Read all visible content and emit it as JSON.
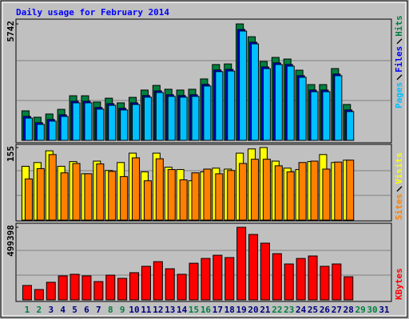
{
  "title": "Daily usage for February 2014",
  "chart_data": [
    {
      "type": "bar",
      "ylim": [
        0,
        5742
      ],
      "yticks": [
        5742
      ],
      "series": [
        {
          "name": "Hits",
          "color": "#008040",
          "values": [
            1455,
            1140,
            1300,
            1530,
            2200,
            2200,
            1890,
            2080,
            1850,
            2120,
            2480,
            2710,
            2520,
            2480,
            2520,
            3030,
            3740,
            3770,
            5742,
            5110,
            3890,
            4090,
            4010,
            3460,
            2750,
            2750,
            3540,
            1770,
            null,
            null,
            null
          ]
        },
        {
          "name": "Files",
          "color": "#0000ff",
          "values": [
            1180,
            870,
            1030,
            1260,
            1930,
            1930,
            1620,
            1810,
            1580,
            1850,
            2210,
            2440,
            2250,
            2210,
            2250,
            2760,
            3470,
            3500,
            5470,
            4840,
            3620,
            3820,
            3740,
            3190,
            2480,
            2480,
            3270,
            1500,
            null,
            null,
            null
          ]
        },
        {
          "name": "Pages",
          "color": "#00c0ff",
          "values": [
            1100,
            790,
            950,
            1180,
            1850,
            1850,
            1540,
            1730,
            1500,
            1770,
            2130,
            2360,
            2170,
            2130,
            2170,
            2680,
            3390,
            3420,
            5390,
            4760,
            3540,
            3740,
            3660,
            3110,
            2400,
            2400,
            3190,
            1420,
            null,
            null,
            null
          ]
        }
      ]
    },
    {
      "type": "bar",
      "ylim": [
        0,
        155
      ],
      "yticks": [
        155
      ],
      "series": [
        {
          "name": "Visits",
          "color": "#ffff00",
          "values": [
            115,
            123,
            148,
            115,
            125,
            99,
            126,
            106,
            123,
            143,
            103,
            143,
            113,
            108,
            84,
            103,
            111,
            109,
            143,
            152,
            155,
            126,
            111,
            108,
            125,
            140,
            123,
            128,
            null,
            null,
            null
          ]
        },
        {
          "name": "Sites",
          "color": "#ff8000",
          "values": [
            88,
            110,
            140,
            101,
            121,
            99,
            120,
            104,
            93,
            133,
            84,
            131,
            108,
            86,
            101,
            109,
            99,
            106,
            121,
            130,
            130,
            116,
            103,
            123,
            126,
            109,
            124,
            128,
            null,
            null,
            null
          ]
        }
      ]
    },
    {
      "type": "bar",
      "ylim": [
        0,
        499398
      ],
      "yticks": [
        499398
      ],
      "series": [
        {
          "name": "KBytes",
          "color": "#ff0000",
          "values": [
            99000,
            71000,
            121000,
            165000,
            176000,
            165000,
            126000,
            170000,
            148000,
            187000,
            231000,
            263000,
            214000,
            176000,
            252000,
            285000,
            307000,
            291000,
            499398,
            450000,
            390000,
            318000,
            247000,
            285000,
            302000,
            231000,
            247000,
            159000,
            null,
            null,
            null
          ]
        }
      ],
      "categories": [
        "1",
        "2",
        "3",
        "4",
        "5",
        "6",
        "7",
        "8",
        "9",
        "10",
        "11",
        "12",
        "13",
        "14",
        "15",
        "16",
        "17",
        "18",
        "19",
        "20",
        "21",
        "22",
        "23",
        "24",
        "25",
        "26",
        "27",
        "28",
        "29",
        "30",
        "31"
      ],
      "category_colors": [
        "#008040",
        "#008040",
        "#000080",
        "#000080",
        "#000080",
        "#000080",
        "#000080",
        "#008040",
        "#008040",
        "#000080",
        "#000080",
        "#000080",
        "#000080",
        "#000080",
        "#008040",
        "#008040",
        "#000080",
        "#000080",
        "#000080",
        "#000080",
        "#000080",
        "#008040",
        "#008040",
        "#000080",
        "#000080",
        "#000080",
        "#000080",
        "#000080",
        "#008040",
        "#008040",
        "#000080"
      ]
    }
  ]
}
